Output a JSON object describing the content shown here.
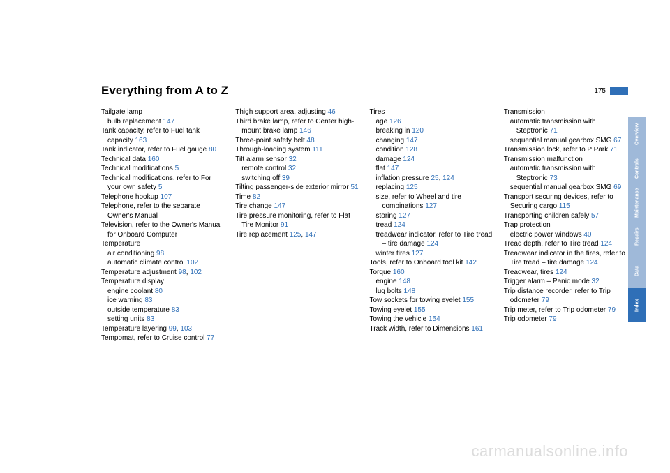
{
  "header": {
    "title": "Everything from A to Z",
    "page_number": "175"
  },
  "tabs": [
    {
      "label": "Overview",
      "bg": "#9fb9d9"
    },
    {
      "label": "Controls",
      "bg": "#9fb9d9"
    },
    {
      "label": "Maintenance",
      "bg": "#9fb9d9"
    },
    {
      "label": "Repairs",
      "bg": "#9fb9d9"
    },
    {
      "label": "Data",
      "bg": "#9fb9d9"
    },
    {
      "label": "Index",
      "bg": "#2f6fb7"
    }
  ],
  "columns": [
    [
      {
        "t": "Tailgate lamp"
      },
      {
        "t": "bulb replacement ",
        "p": "147",
        "sub": true
      },
      {
        "t": "Tank capacity, refer to Fuel tank capacity ",
        "p": "163",
        "hang": true
      },
      {
        "t": "Tank indicator, refer to Fuel gauge ",
        "p": "80",
        "hang": true
      },
      {
        "t": "Technical data ",
        "p": "160"
      },
      {
        "t": "Technical modifications ",
        "p": "5"
      },
      {
        "t": "Technical modifications, refer to For your own safety ",
        "p": "5",
        "hang": true
      },
      {
        "t": "Telephone hookup ",
        "p": "107"
      },
      {
        "t": "Telephone, refer to the separate Owner's Manual",
        "hang": true
      },
      {
        "t": "Television, refer to the Owner's Manual for Onboard Computer",
        "hang": true
      },
      {
        "t": "Temperature"
      },
      {
        "t": "air conditioning ",
        "p": "98",
        "sub": true
      },
      {
        "t": "automatic climate control ",
        "p": "102",
        "sub": true,
        "hang": true
      },
      {
        "t": "Temperature adjustment ",
        "p2": [
          "98",
          "102"
        ],
        "hang": true
      },
      {
        "t": "Temperature display"
      },
      {
        "t": "engine coolant ",
        "p": "80",
        "sub": true
      },
      {
        "t": "ice warning ",
        "p": "83",
        "sub": true
      },
      {
        "t": "outside temperature ",
        "p": "83",
        "sub": true
      },
      {
        "t": "setting units ",
        "p": "83",
        "sub": true
      },
      {
        "t": "Temperature layering ",
        "p2": [
          "99",
          "103"
        ],
        "hang": true
      },
      {
        "t": "Tempomat, refer to Cruise control ",
        "p": "77",
        "hang": true
      }
    ],
    [
      {
        "t": "Thigh support area, adjusting ",
        "p": "46",
        "hang": true
      },
      {
        "t": "Third brake lamp, refer to Center high-mount brake lamp ",
        "p": "146",
        "hang": true
      },
      {
        "t": "Three-point safety belt ",
        "p": "48"
      },
      {
        "t": "Through-loading system ",
        "p": "111"
      },
      {
        "t": "Tilt alarm sensor ",
        "p": "32"
      },
      {
        "t": "remote control ",
        "p": "32",
        "sub": true
      },
      {
        "t": "switching off ",
        "p": "39",
        "sub": true
      },
      {
        "t": "Tilting passenger-side exterior mirror ",
        "p": "51",
        "hang": true
      },
      {
        "t": "Time ",
        "p": "82"
      },
      {
        "t": "Tire change ",
        "p": "147"
      },
      {
        "t": "Tire pressure monitoring, refer to Flat Tire Monitor ",
        "p": "91",
        "hang": true
      },
      {
        "t": "Tire replacement ",
        "p2": [
          "125",
          "147"
        ]
      }
    ],
    [
      {
        "t": "Tires"
      },
      {
        "t": "age ",
        "p": "126",
        "sub": true
      },
      {
        "t": "breaking in ",
        "p": "120",
        "sub": true
      },
      {
        "t": "changing ",
        "p": "147",
        "sub": true
      },
      {
        "t": "condition ",
        "p": "128",
        "sub": true
      },
      {
        "t": "damage ",
        "p": "124",
        "sub": true
      },
      {
        "t": "flat ",
        "p": "147",
        "sub": true
      },
      {
        "t": "inflation pressure ",
        "p2": [
          "25",
          "124"
        ],
        "sub": true
      },
      {
        "t": "replacing ",
        "p": "125",
        "sub": true
      },
      {
        "t": "size, refer to Wheel and tire combinations ",
        "p": "127",
        "sub": true,
        "hang": true
      },
      {
        "t": "storing ",
        "p": "127",
        "sub": true
      },
      {
        "t": "tread ",
        "p": "124",
        "sub": true
      },
      {
        "t": "treadwear indicator, refer to Tire tread – tire damage ",
        "p": "124",
        "sub": true,
        "hang": true
      },
      {
        "t": "winter tires ",
        "p": "127",
        "sub": true
      },
      {
        "t": "Tools, refer to Onboard tool kit ",
        "p": "142",
        "hang": true
      },
      {
        "t": "Torque ",
        "p": "160"
      },
      {
        "t": "engine ",
        "p": "148",
        "sub": true
      },
      {
        "t": "lug bolts ",
        "p": "148",
        "sub": true
      },
      {
        "t": "Tow sockets for towing eyelet ",
        "p": "155",
        "hang": true
      },
      {
        "t": "Towing eyelet ",
        "p": "155"
      },
      {
        "t": "Towing the vehicle ",
        "p": "154"
      },
      {
        "t": "Track width, refer to Dimensions ",
        "p": "161",
        "hang": true
      }
    ],
    [
      {
        "t": "Transmission"
      },
      {
        "t": "automatic transmission with Steptronic ",
        "p": "71",
        "sub": true,
        "hang": true
      },
      {
        "t": "sequential manual gearbox SMG ",
        "p": "67",
        "sub": true,
        "hang": true
      },
      {
        "t": "Transmission lock, refer to P Park ",
        "p": "71",
        "hang": true
      },
      {
        "t": "Transmission malfunction"
      },
      {
        "t": "automatic transmission with Steptronic ",
        "p": "73",
        "sub": true,
        "hang": true
      },
      {
        "t": "sequential manual gearbox SMG ",
        "p": "69",
        "sub": true,
        "hang": true
      },
      {
        "t": "Transport securing devices, refer to Securing cargo ",
        "p": "115",
        "hang": true
      },
      {
        "t": "Transporting children safely ",
        "p": "57",
        "hang": true
      },
      {
        "t": "Trap protection"
      },
      {
        "t": "electric power windows ",
        "p": "40",
        "sub": true
      },
      {
        "t": "Tread depth, refer to Tire tread ",
        "p": "124",
        "hang": true
      },
      {
        "t": "Treadwear indicator in the tires, refer to Tire tread – tire damage ",
        "p": "124",
        "hang": true
      },
      {
        "t": "Treadwear, tires ",
        "p": "124"
      },
      {
        "t": "Trigger alarm – Panic mode ",
        "p": "32",
        "hang": true
      },
      {
        "t": "Trip distance recorder, refer to Trip odometer ",
        "p": "79",
        "hang": true
      },
      {
        "t": "Trip meter, refer to Trip odometer ",
        "p": "79",
        "hang": true
      },
      {
        "t": "Trip odometer ",
        "p": "79"
      }
    ]
  ],
  "watermark": "carmanualsonline.info"
}
